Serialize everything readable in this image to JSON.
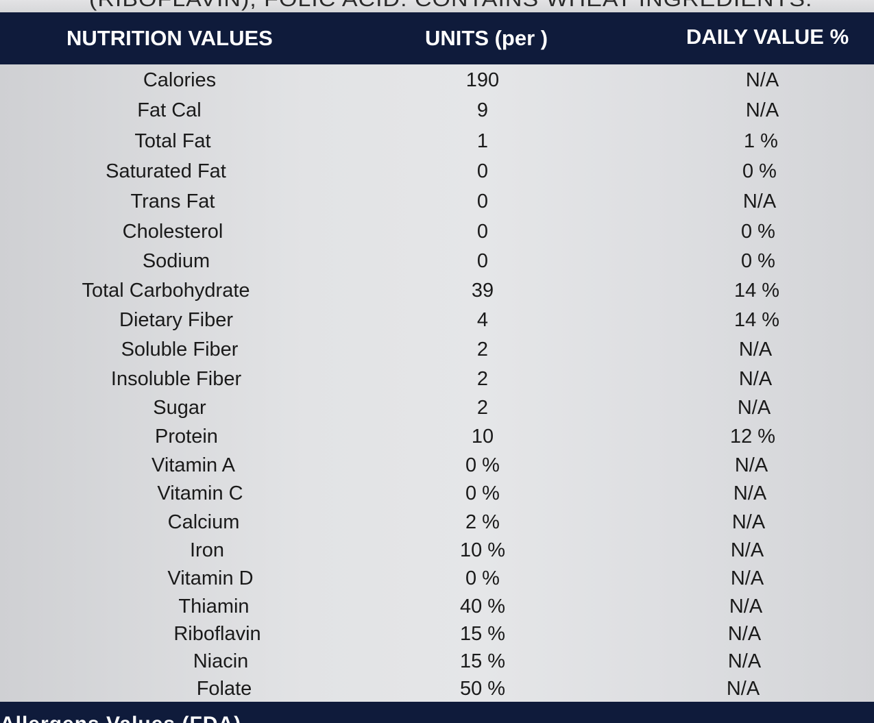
{
  "top_strip_text": "(RIBOFLAVIN), FOLIC ACID. CONTAINS WHEAT INGREDIENTS.",
  "header": {
    "col_name": "NUTRITION VALUES",
    "col_units": "UNITS (per )",
    "col_daily_value": "DAILY VALUE %"
  },
  "rows": [
    {
      "name": "Calories",
      "units": "190",
      "dv": "N/A"
    },
    {
      "name": "Fat Cal",
      "units": "9",
      "dv": "N/A"
    },
    {
      "name": "Total Fat",
      "units": "1",
      "dv": "1 %"
    },
    {
      "name": "Saturated Fat",
      "units": "0",
      "dv": "0 %"
    },
    {
      "name": "Trans Fat",
      "units": "0",
      "dv": "N/A"
    },
    {
      "name": "Cholesterol",
      "units": "0",
      "dv": "0 %"
    },
    {
      "name": "Sodium",
      "units": "0",
      "dv": "0 %"
    },
    {
      "name": "Total Carbohydrate",
      "units": "39",
      "dv": "14 %"
    },
    {
      "name": "Dietary Fiber",
      "units": "4",
      "dv": "14 %"
    },
    {
      "name": "Soluble Fiber",
      "units": "2",
      "dv": "N/A"
    },
    {
      "name": "Insoluble Fiber",
      "units": "2",
      "dv": "N/A"
    },
    {
      "name": "Sugar",
      "units": "2",
      "dv": "N/A"
    },
    {
      "name": "Protein",
      "units": "10",
      "dv": "12 %"
    },
    {
      "name": "Vitamin A",
      "units": "0 %",
      "dv": "N/A"
    },
    {
      "name": "Vitamin C",
      "units": "0 %",
      "dv": "N/A"
    },
    {
      "name": "Calcium",
      "units": "2 %",
      "dv": "N/A"
    },
    {
      "name": "Iron",
      "units": "10 %",
      "dv": "N/A"
    },
    {
      "name": "Vitamin D",
      "units": "0 %",
      "dv": "N/A"
    },
    {
      "name": "Thiamin",
      "units": "40 %",
      "dv": "N/A"
    },
    {
      "name": "Riboflavin",
      "units": "15 %",
      "dv": "N/A"
    },
    {
      "name": "Niacin",
      "units": "15 %",
      "dv": "N/A"
    },
    {
      "name": "Folate",
      "units": "50 %",
      "dv": "N/A"
    }
  ],
  "bottom_bar_text": "Allergens Values (FDA)",
  "colors": {
    "header_bg": "#0f1b3b",
    "header_text": "#ffffff",
    "body_bg": "#e2e3e5",
    "body_text": "#1a1a1a"
  }
}
